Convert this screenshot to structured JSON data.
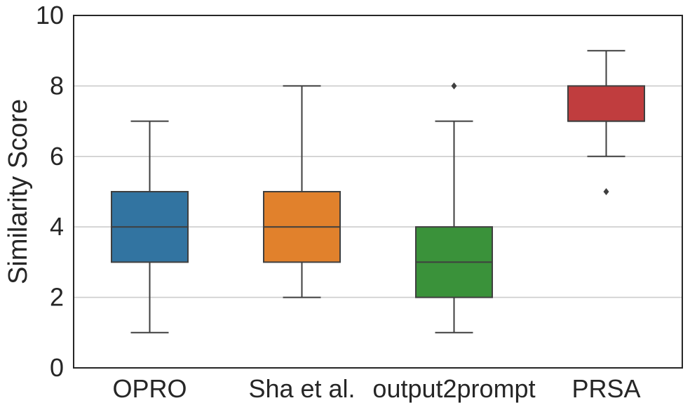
{
  "chart_data": {
    "type": "box",
    "title": "",
    "xlabel": "",
    "ylabel": "Similarity Score",
    "ylim": [
      0,
      10
    ],
    "yticks": [
      "0",
      "2",
      "4",
      "6",
      "8",
      "10"
    ],
    "grid": "horizontal",
    "categories": [
      "OPRO",
      "Sha et al.",
      "output2prompt",
      "PRSA"
    ],
    "boxes": [
      {
        "category": "OPRO",
        "whisker_low": 1,
        "q1": 3,
        "median": 4,
        "q3": 5,
        "whisker_high": 7,
        "outliers": [],
        "color": "#3274a1"
      },
      {
        "category": "Sha et al.",
        "whisker_low": 2,
        "q1": 3,
        "median": 4,
        "q3": 5,
        "whisker_high": 8,
        "outliers": [],
        "color": "#e1812c"
      },
      {
        "category": "output2prompt",
        "whisker_low": 1,
        "q1": 2,
        "median": 3,
        "q3": 4,
        "whisker_high": 7,
        "outliers": [
          8
        ],
        "color": "#3a923a"
      },
      {
        "category": "PRSA",
        "whisker_low": 6,
        "q1": 7,
        "median": 7,
        "q3": 8,
        "whisker_high": 9,
        "outliers": [
          5
        ],
        "color": "#c03d3e"
      }
    ]
  }
}
